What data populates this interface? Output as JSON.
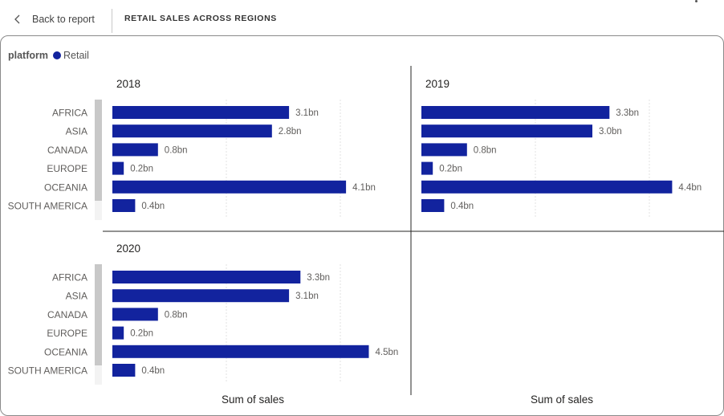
{
  "header": {
    "back_label": "Back to report",
    "report_title": "RETAIL SALES ACROSS REGIONS"
  },
  "legend": {
    "title": "platform",
    "items": [
      {
        "label": "Retail",
        "color": "#12239e"
      }
    ]
  },
  "chart_data": {
    "type": "bar",
    "orientation": "horizontal",
    "layout": "small-multiples",
    "xlabel": "Sum of sales",
    "value_unit": "bn",
    "categories": [
      "AFRICA",
      "ASIA",
      "CANADA",
      "EUROPE",
      "OCEANIA",
      "SOUTH AMERICA"
    ],
    "series": [
      {
        "name": "Retail",
        "color": "#12239e"
      }
    ],
    "panels": [
      {
        "title": "2018",
        "values": [
          3.1,
          2.8,
          0.8,
          0.2,
          4.1,
          0.4
        ],
        "labels": [
          "3.1bn",
          "2.8bn",
          "0.8bn",
          "0.2bn",
          "4.1bn",
          "0.4bn"
        ]
      },
      {
        "title": "2019",
        "values": [
          3.3,
          3.0,
          0.8,
          0.2,
          4.4,
          0.4
        ],
        "labels": [
          "3.3bn",
          "3.0bn",
          "0.8bn",
          "0.2bn",
          "4.4bn",
          "0.4bn"
        ]
      },
      {
        "title": "2020",
        "values": [
          3.3,
          3.1,
          0.8,
          0.2,
          4.5,
          0.4
        ],
        "labels": [
          "3.3bn",
          "3.1bn",
          "0.8bn",
          "0.2bn",
          "4.5bn",
          "0.4bn"
        ]
      }
    ],
    "xlim": [
      0,
      4.5
    ],
    "grid": true,
    "legend_position": "top-left"
  }
}
